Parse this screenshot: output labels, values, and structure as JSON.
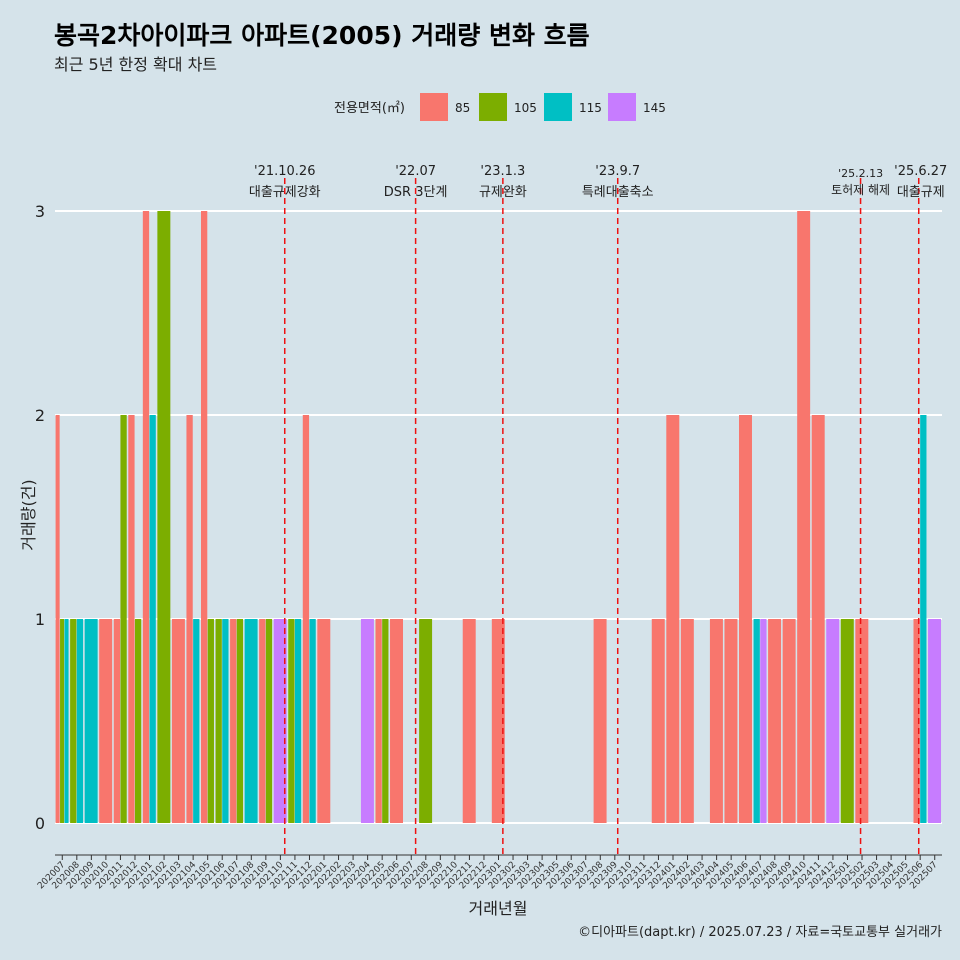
{
  "title": "봉곡2차아이파크 아파트(2005) 거래량 변화 흐름",
  "subtitle": "최근 5년 한정 확대 차트",
  "legend": {
    "title": "전용면적(㎡)",
    "items": [
      {
        "label": "85",
        "color": "#f8766d"
      },
      {
        "label": "105",
        "color": "#7cae00"
      },
      {
        "label": "115",
        "color": "#00bfc4"
      },
      {
        "label": "145",
        "color": "#c77cff"
      }
    ]
  },
  "chart_data": {
    "type": "bar",
    "title": "봉곡2차아이파크 아파트(2005) 거래량 변화 흐름",
    "xlabel": "거래년월",
    "ylabel": "거래량(건)",
    "ylim": [
      0,
      3
    ],
    "yticks": [
      0,
      1,
      2,
      3
    ],
    "categories": [
      "202007",
      "202008",
      "202009",
      "202010",
      "202011",
      "202012",
      "202101",
      "202102",
      "202103",
      "202104",
      "202105",
      "202106",
      "202107",
      "202108",
      "202109",
      "202110",
      "202111",
      "202112",
      "202201",
      "202202",
      "202203",
      "202204",
      "202205",
      "202206",
      "202207",
      "202208",
      "202209",
      "202210",
      "202211",
      "202212",
      "202301",
      "202302",
      "202303",
      "202304",
      "202305",
      "202306",
      "202307",
      "202308",
      "202309",
      "202310",
      "202311",
      "202312",
      "202401",
      "202402",
      "202403",
      "202404",
      "202405",
      "202406",
      "202407",
      "202408",
      "202409",
      "202410",
      "202411",
      "202412",
      "202501",
      "202502",
      "202503",
      "202504",
      "202505",
      "202506",
      "202507"
    ],
    "series": [
      {
        "name": "85",
        "color": "#f8766d",
        "values": [
          2,
          0,
          0,
          1,
          1,
          2,
          3,
          0,
          1,
          2,
          3,
          0,
          1,
          0,
          1,
          0,
          0,
          2,
          1,
          0,
          0,
          0,
          1,
          1,
          0,
          0,
          0,
          0,
          1,
          0,
          1,
          0,
          0,
          0,
          0,
          0,
          0,
          1,
          0,
          0,
          0,
          1,
          2,
          1,
          0,
          1,
          1,
          2,
          0,
          1,
          1,
          3,
          2,
          0,
          0,
          1,
          0,
          0,
          0,
          1,
          0
        ]
      },
      {
        "name": "105",
        "color": "#7cae00",
        "values": [
          1,
          1,
          0,
          0,
          2,
          1,
          0,
          3,
          0,
          0,
          1,
          1,
          1,
          0,
          1,
          0,
          1,
          0,
          0,
          0,
          0,
          0,
          1,
          0,
          0,
          1,
          0,
          0,
          0,
          0,
          0,
          0,
          0,
          0,
          0,
          0,
          0,
          0,
          0,
          0,
          0,
          0,
          0,
          0,
          0,
          0,
          0,
          0,
          0,
          0,
          0,
          0,
          0,
          0,
          1,
          0,
          0,
          0,
          0,
          0,
          0
        ]
      },
      {
        "name": "115",
        "color": "#00bfc4",
        "values": [
          1,
          1,
          1,
          0,
          0,
          0,
          2,
          0,
          0,
          1,
          0,
          1,
          0,
          1,
          0,
          0,
          1,
          1,
          0,
          0,
          0,
          0,
          0,
          0,
          0,
          0,
          0,
          0,
          0,
          0,
          0,
          0,
          0,
          0,
          0,
          0,
          0,
          0,
          0,
          0,
          0,
          0,
          0,
          0,
          0,
          0,
          0,
          0,
          1,
          0,
          0,
          0,
          0,
          0,
          0,
          0,
          0,
          0,
          0,
          2,
          0
        ]
      },
      {
        "name": "145",
        "color": "#c77cff",
        "values": [
          0,
          0,
          0,
          0,
          0,
          0,
          0,
          0,
          0,
          0,
          0,
          0,
          0,
          0,
          0,
          1,
          0,
          0,
          0,
          0,
          0,
          1,
          0,
          0,
          0,
          0,
          0,
          0,
          0,
          0,
          0,
          0,
          0,
          0,
          0,
          0,
          0,
          0,
          0,
          0,
          0,
          0,
          0,
          0,
          0,
          0,
          0,
          0,
          1,
          0,
          0,
          0,
          0,
          1,
          0,
          0,
          0,
          0,
          0,
          0,
          1
        ]
      }
    ],
    "events": [
      {
        "date": "'21.10.26",
        "label": "대출규제강화",
        "index": 15.8
      },
      {
        "date": "'22.07",
        "label": "DSR 3단계",
        "index": 24.8
      },
      {
        "date": "'23.1.3",
        "label": "규제완화",
        "index": 30.8
      },
      {
        "date": "'23.9.7",
        "label": "특례대출축소",
        "index": 38.7
      },
      {
        "date": "'25.2.13",
        "label": "토허제 해제",
        "index": 55.4
      },
      {
        "date": "'25.6.27",
        "label": "대출규제",
        "index": 59.4
      }
    ]
  },
  "caption": "©디아파트(dapt.kr) / 2025.07.23 / 자료=국토교통부 실거래가"
}
